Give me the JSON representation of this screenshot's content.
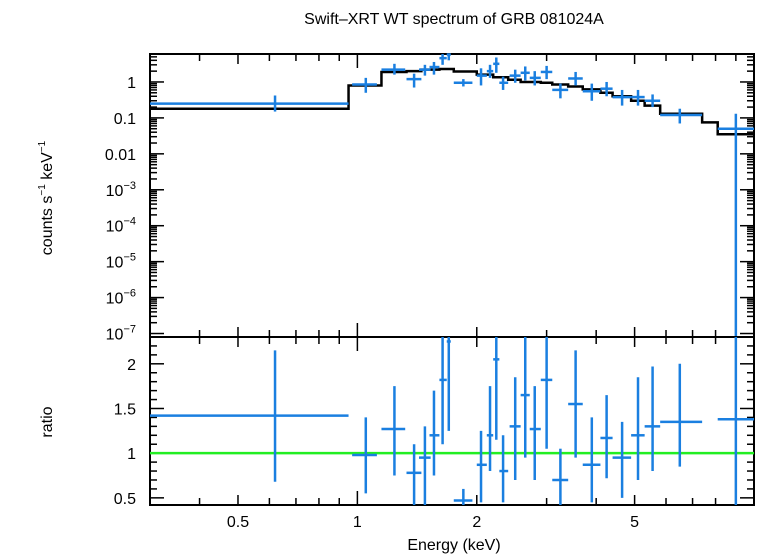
{
  "chart_data": {
    "type": "scatter",
    "title": "Swift–XRT WT spectrum of GRB 081024A",
    "xlabel": "Energy (keV)",
    "x_scale": "log",
    "xlim": [
      0.3,
      10.0
    ],
    "x_ticks": [
      0.5,
      1,
      2,
      5
    ],
    "x_tick_labels": [
      "0.5",
      "1",
      "2",
      "5"
    ],
    "colors": {
      "data": "#1a7fe0",
      "model": "#000000",
      "ratio_reference": "#22ee22"
    },
    "panels": [
      {
        "name": "spectrum",
        "ylabel_text": "counts s",
        "ylabel_sup1": "−1",
        "ylabel_mid": " keV",
        "ylabel_sup2": "−1",
        "y_scale": "log",
        "ylim": [
          8e-08,
          6
        ],
        "y_ticks": [
          {
            "value": 1,
            "base": "1",
            "exp": ""
          },
          {
            "value": 0.1,
            "base": "0.1",
            "exp": ""
          },
          {
            "value": 0.01,
            "base": "0.01",
            "exp": ""
          },
          {
            "value": 0.001,
            "base": "10",
            "exp": "−3"
          },
          {
            "value": 0.0001,
            "base": "10",
            "exp": "−4"
          },
          {
            "value": 1e-05,
            "base": "10",
            "exp": "−5"
          },
          {
            "value": 1e-06,
            "base": "10",
            "exp": "−6"
          },
          {
            "value": 1e-07,
            "base": "10",
            "exp": "−7"
          }
        ],
        "data": [
          {
            "x": 0.62,
            "xlo": 0.3,
            "xhi": 0.95,
            "y": 0.25,
            "ylo": 0.15,
            "yhi": 0.42
          },
          {
            "x": 1.05,
            "xlo": 0.97,
            "xhi": 1.12,
            "y": 0.85,
            "ylo": 0.5,
            "yhi": 1.3
          },
          {
            "x": 1.24,
            "xlo": 1.15,
            "xhi": 1.32,
            "y": 2.2,
            "ylo": 1.6,
            "yhi": 3.2
          },
          {
            "x": 1.39,
            "xlo": 1.33,
            "xhi": 1.45,
            "y": 1.2,
            "ylo": 0.7,
            "yhi": 1.7
          },
          {
            "x": 1.48,
            "xlo": 1.43,
            "xhi": 1.53,
            "y": 2.2,
            "ylo": 1.5,
            "yhi": 3.0
          },
          {
            "x": 1.56,
            "xlo": 1.52,
            "xhi": 1.61,
            "y": 2.6,
            "ylo": 1.6,
            "yhi": 3.6
          },
          {
            "x": 1.64,
            "xlo": 1.61,
            "xhi": 1.68,
            "y": 4.6,
            "ylo": 3.0,
            "yhi": 6.0
          },
          {
            "x": 1.7,
            "xlo": 1.68,
            "xhi": 1.72,
            "y": 5.8,
            "ylo": 4.0,
            "yhi": 6.0
          },
          {
            "x": 1.85,
            "xlo": 1.75,
            "xhi": 1.95,
            "y": 0.95,
            "ylo": 0.75,
            "yhi": 1.2
          },
          {
            "x": 2.05,
            "xlo": 2.0,
            "xhi": 2.12,
            "y": 1.5,
            "ylo": 0.8,
            "yhi": 2.4
          },
          {
            "x": 2.16,
            "xlo": 2.12,
            "xhi": 2.2,
            "y": 2.0,
            "ylo": 1.3,
            "yhi": 3.0
          },
          {
            "x": 2.24,
            "xlo": 2.2,
            "xhi": 2.28,
            "y": 3.2,
            "ylo": 1.8,
            "yhi": 4.8
          },
          {
            "x": 2.33,
            "xlo": 2.28,
            "xhi": 2.4,
            "y": 0.95,
            "ylo": 0.6,
            "yhi": 1.4
          },
          {
            "x": 2.5,
            "xlo": 2.42,
            "xhi": 2.58,
            "y": 1.5,
            "ylo": 0.95,
            "yhi": 2.2
          },
          {
            "x": 2.65,
            "xlo": 2.58,
            "xhi": 2.72,
            "y": 1.8,
            "ylo": 1.1,
            "yhi": 2.7
          },
          {
            "x": 2.8,
            "xlo": 2.72,
            "xhi": 2.9,
            "y": 1.3,
            "ylo": 0.8,
            "yhi": 2.0
          },
          {
            "x": 3.0,
            "xlo": 2.9,
            "xhi": 3.1,
            "y": 1.9,
            "ylo": 1.2,
            "yhi": 2.8
          },
          {
            "x": 3.25,
            "xlo": 3.1,
            "xhi": 3.4,
            "y": 0.6,
            "ylo": 0.35,
            "yhi": 0.9
          },
          {
            "x": 3.55,
            "xlo": 3.4,
            "xhi": 3.7,
            "y": 1.25,
            "ylo": 0.8,
            "yhi": 1.9
          },
          {
            "x": 3.9,
            "xlo": 3.7,
            "xhi": 4.1,
            "y": 0.55,
            "ylo": 0.3,
            "yhi": 0.9
          },
          {
            "x": 4.25,
            "xlo": 4.1,
            "xhi": 4.4,
            "y": 0.65,
            "ylo": 0.4,
            "yhi": 1.0
          },
          {
            "x": 4.65,
            "xlo": 4.4,
            "xhi": 4.9,
            "y": 0.38,
            "ylo": 0.22,
            "yhi": 0.6
          },
          {
            "x": 5.1,
            "xlo": 4.9,
            "xhi": 5.3,
            "y": 0.38,
            "ylo": 0.22,
            "yhi": 0.6
          },
          {
            "x": 5.55,
            "xlo": 5.3,
            "xhi": 5.8,
            "y": 0.3,
            "ylo": 0.2,
            "yhi": 0.45
          },
          {
            "x": 6.5,
            "xlo": 5.8,
            "xhi": 7.4,
            "y": 0.12,
            "ylo": 0.07,
            "yhi": 0.18
          },
          {
            "x": 9.0,
            "xlo": 8.1,
            "xhi": 10.0,
            "y": 0.05,
            "ylo": 5e-08,
            "yhi": 0.13
          }
        ],
        "model": [
          {
            "xlo": 0.3,
            "xhi": 0.95,
            "y": 0.18
          },
          {
            "xlo": 0.95,
            "xhi": 1.15,
            "y": 0.8
          },
          {
            "xlo": 1.15,
            "xhi": 1.33,
            "y": 1.9
          },
          {
            "xlo": 1.33,
            "xhi": 1.45,
            "y": 2.0
          },
          {
            "xlo": 1.45,
            "xhi": 1.61,
            "y": 2.2
          },
          {
            "xlo": 1.61,
            "xhi": 1.75,
            "y": 2.3
          },
          {
            "xlo": 1.75,
            "xhi": 2.0,
            "y": 1.95
          },
          {
            "xlo": 2.0,
            "xhi": 2.2,
            "y": 1.6
          },
          {
            "xlo": 2.2,
            "xhi": 2.4,
            "y": 1.35
          },
          {
            "xlo": 2.4,
            "xhi": 2.58,
            "y": 1.15
          },
          {
            "xlo": 2.58,
            "xhi": 2.9,
            "y": 1.0
          },
          {
            "xlo": 2.9,
            "xhi": 3.1,
            "y": 0.95
          },
          {
            "xlo": 3.1,
            "xhi": 3.4,
            "y": 0.85
          },
          {
            "xlo": 3.4,
            "xhi": 3.7,
            "y": 0.75
          },
          {
            "xlo": 3.7,
            "xhi": 4.1,
            "y": 0.62
          },
          {
            "xlo": 4.1,
            "xhi": 4.4,
            "y": 0.5
          },
          {
            "xlo": 4.4,
            "xhi": 4.9,
            "y": 0.4
          },
          {
            "xlo": 4.9,
            "xhi": 5.3,
            "y": 0.3
          },
          {
            "xlo": 5.3,
            "xhi": 5.8,
            "y": 0.22
          },
          {
            "xlo": 5.8,
            "xhi": 7.4,
            "y": 0.13
          },
          {
            "xlo": 7.4,
            "xhi": 8.1,
            "y": 0.075
          },
          {
            "xlo": 8.1,
            "xhi": 10.0,
            "y": 0.035
          }
        ]
      },
      {
        "name": "ratio",
        "ylabel": "ratio",
        "y_scale": "linear",
        "ylim": [
          0.42,
          2.3
        ],
        "y_ticks": [
          {
            "value": 0.5,
            "label": "0.5"
          },
          {
            "value": 1,
            "label": "1"
          },
          {
            "value": 1.5,
            "label": "1.5"
          },
          {
            "value": 2,
            "label": "2"
          }
        ],
        "reference": 1.0,
        "data": [
          {
            "x": 0.62,
            "xlo": 0.3,
            "xhi": 0.95,
            "y": 1.42,
            "ylo": 0.68,
            "yhi": 2.15
          },
          {
            "x": 1.05,
            "xlo": 0.97,
            "xhi": 1.12,
            "y": 0.98,
            "ylo": 0.55,
            "yhi": 1.4
          },
          {
            "x": 1.24,
            "xlo": 1.15,
            "xhi": 1.32,
            "y": 1.27,
            "ylo": 0.75,
            "yhi": 1.75
          },
          {
            "x": 1.39,
            "xlo": 1.33,
            "xhi": 1.45,
            "y": 0.78,
            "ylo": 0.42,
            "yhi": 1.1
          },
          {
            "x": 1.48,
            "xlo": 1.43,
            "xhi": 1.53,
            "y": 0.95,
            "ylo": 0.42,
            "yhi": 1.3
          },
          {
            "x": 1.56,
            "xlo": 1.52,
            "xhi": 1.61,
            "y": 1.2,
            "ylo": 0.75,
            "yhi": 1.7
          },
          {
            "x": 1.64,
            "xlo": 1.61,
            "xhi": 1.68,
            "y": 1.82,
            "ylo": 1.1,
            "yhi": 2.3
          },
          {
            "x": 1.7,
            "xlo": 1.68,
            "xhi": 1.72,
            "y": 2.25,
            "ylo": 1.25,
            "yhi": 2.3
          },
          {
            "x": 1.85,
            "xlo": 1.75,
            "xhi": 1.95,
            "y": 0.47,
            "ylo": 0.42,
            "yhi": 0.6
          },
          {
            "x": 2.05,
            "xlo": 2.0,
            "xhi": 2.12,
            "y": 0.87,
            "ylo": 0.45,
            "yhi": 1.25
          },
          {
            "x": 2.16,
            "xlo": 2.12,
            "xhi": 2.2,
            "y": 1.2,
            "ylo": 0.8,
            "yhi": 1.75
          },
          {
            "x": 2.24,
            "xlo": 2.2,
            "xhi": 2.28,
            "y": 2.05,
            "ylo": 1.15,
            "yhi": 2.3
          },
          {
            "x": 2.33,
            "xlo": 2.28,
            "xhi": 2.4,
            "y": 0.8,
            "ylo": 0.45,
            "yhi": 1.2
          },
          {
            "x": 2.5,
            "xlo": 2.42,
            "xhi": 2.58,
            "y": 1.3,
            "ylo": 0.7,
            "yhi": 1.85
          },
          {
            "x": 2.65,
            "xlo": 2.58,
            "xhi": 2.72,
            "y": 1.65,
            "ylo": 0.95,
            "yhi": 2.3
          },
          {
            "x": 2.8,
            "xlo": 2.72,
            "xhi": 2.9,
            "y": 1.27,
            "ylo": 0.7,
            "yhi": 1.75
          },
          {
            "x": 3.0,
            "xlo": 2.9,
            "xhi": 3.1,
            "y": 1.82,
            "ylo": 1.05,
            "yhi": 2.3
          },
          {
            "x": 3.25,
            "xlo": 3.1,
            "xhi": 3.4,
            "y": 0.7,
            "ylo": 0.42,
            "yhi": 1.05
          },
          {
            "x": 3.55,
            "xlo": 3.4,
            "xhi": 3.7,
            "y": 1.55,
            "ylo": 0.95,
            "yhi": 2.15
          },
          {
            "x": 3.9,
            "xlo": 3.7,
            "xhi": 4.1,
            "y": 0.87,
            "ylo": 0.45,
            "yhi": 1.4
          },
          {
            "x": 4.25,
            "xlo": 4.1,
            "xhi": 4.4,
            "y": 1.17,
            "ylo": 0.72,
            "yhi": 1.65
          },
          {
            "x": 4.65,
            "xlo": 4.4,
            "xhi": 4.9,
            "y": 0.95,
            "ylo": 0.5,
            "yhi": 1.35
          },
          {
            "x": 5.1,
            "xlo": 4.9,
            "xhi": 5.3,
            "y": 1.2,
            "ylo": 0.7,
            "yhi": 1.85
          },
          {
            "x": 5.55,
            "xlo": 5.3,
            "xhi": 5.8,
            "y": 1.3,
            "ylo": 0.8,
            "yhi": 1.97
          },
          {
            "x": 6.5,
            "xlo": 5.8,
            "xhi": 7.4,
            "y": 1.35,
            "ylo": 0.85,
            "yhi": 2.0
          },
          {
            "x": 9.0,
            "xlo": 8.1,
            "xhi": 10.0,
            "y": 1.38,
            "ylo": 0.42,
            "yhi": 2.3
          }
        ]
      }
    ]
  }
}
